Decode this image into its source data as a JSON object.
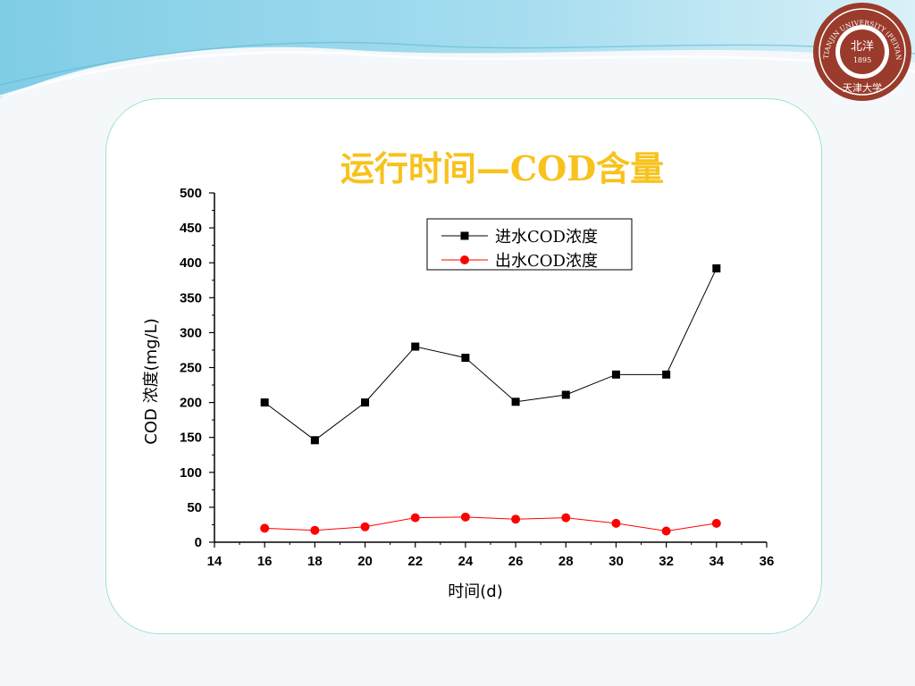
{
  "slide": {
    "title": "运行时间—COD含量",
    "logo": {
      "ring_text": "TIANJIN UNIVERSITY (PEIYANG UNIVERSITY)",
      "center_year": "1895",
      "center_text": "北洋",
      "bottom_text": "天津大学"
    },
    "colors": {
      "title": "#f7c21c",
      "logo": "#9a3b2c",
      "panel_border": "#9fe3c8"
    }
  },
  "chart_data": {
    "type": "line",
    "title": "运行时间—COD含量",
    "xlabel": "时间(d)",
    "ylabel": "COD 浓度(mg/L)",
    "xlim": [
      14,
      36
    ],
    "ylim": [
      0,
      500
    ],
    "x_ticks": [
      14,
      16,
      18,
      20,
      22,
      24,
      26,
      28,
      30,
      32,
      34,
      36
    ],
    "y_ticks": [
      0,
      50,
      100,
      150,
      200,
      250,
      300,
      350,
      400,
      450,
      500
    ],
    "grid": false,
    "legend_position": "top-right",
    "x": [
      16,
      18,
      20,
      22,
      24,
      26,
      28,
      30,
      32,
      34
    ],
    "series": [
      {
        "name": "进水COD浓度",
        "marker": "square",
        "color": "#000000",
        "values": [
          200,
          146,
          200,
          280,
          264,
          201,
          211,
          240,
          240,
          392
        ]
      },
      {
        "name": "出水COD浓度",
        "marker": "circle",
        "color": "#ff0000",
        "values": [
          20,
          17,
          22,
          35,
          36,
          33,
          35,
          27,
          16,
          27
        ]
      }
    ]
  }
}
